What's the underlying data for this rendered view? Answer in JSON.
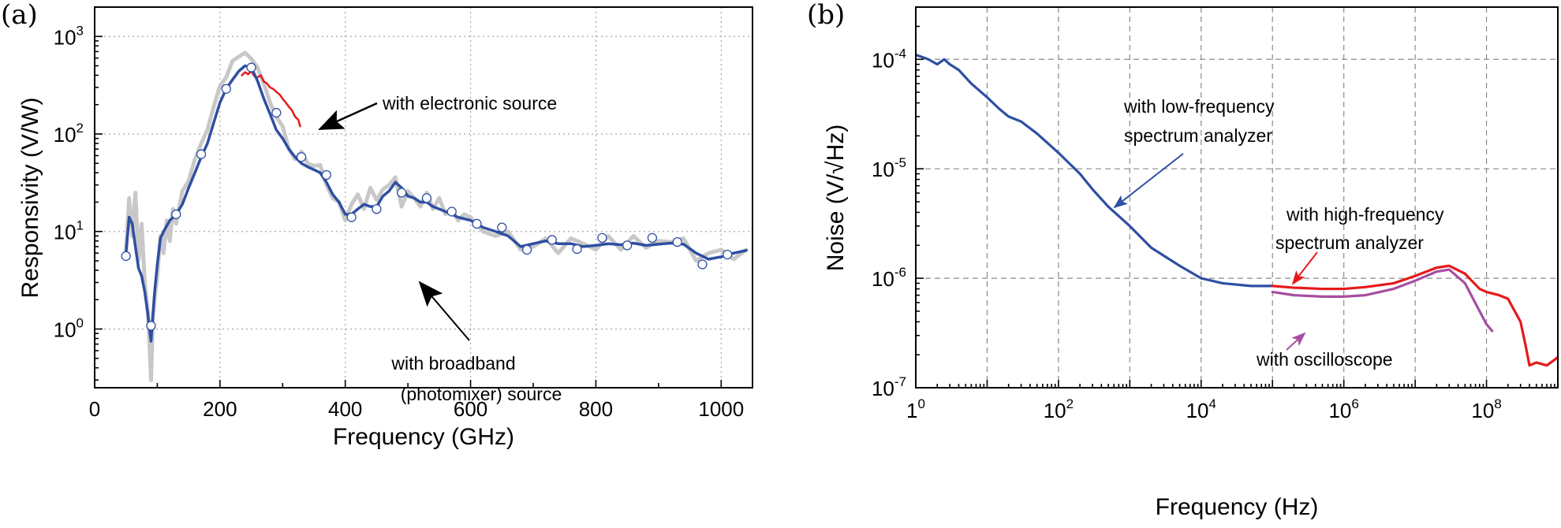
{
  "chart_data": [
    {
      "panel_label": "(a)",
      "type": "line",
      "xlabel": "Frequency (GHz)",
      "ylabel": "Responsivity (V/W)",
      "xlim": [
        0,
        1050
      ],
      "ylim": [
        0.25,
        2000
      ],
      "yscale": "log",
      "grid": true,
      "x_tick_labels": [
        "0",
        "200",
        "400",
        "600",
        "800",
        "1000"
      ],
      "y_tick_labels": [
        {
          "base": "10",
          "exp": "0",
          "value": 1
        },
        {
          "base": "10",
          "exp": "1",
          "value": 10
        },
        {
          "base": "10",
          "exp": "2",
          "value": 100
        },
        {
          "base": "10",
          "exp": "3",
          "value": 1000
        }
      ],
      "series": [
        {
          "color": "#c8c8c8",
          "role": "raw broadband data (gray)",
          "x": [
            50,
            55,
            60,
            65,
            70,
            75,
            80,
            85,
            88,
            90,
            93,
            96,
            100,
            105,
            110,
            115,
            120,
            125,
            130,
            140,
            150,
            160,
            170,
            180,
            190,
            200,
            210,
            220,
            230,
            240,
            250,
            260,
            270,
            280,
            290,
            300,
            310,
            320,
            330,
            340,
            350,
            360,
            370,
            380,
            390,
            400,
            410,
            420,
            430,
            440,
            450,
            460,
            470,
            480,
            490,
            500,
            510,
            520,
            530,
            540,
            550,
            560,
            570,
            580,
            590,
            600,
            620,
            640,
            660,
            680,
            700,
            720,
            740,
            760,
            780,
            800,
            820,
            840,
            860,
            880,
            900,
            920,
            940,
            960,
            980,
            1000,
            1020,
            1040
          ],
          "y": [
            6,
            22,
            9,
            25,
            5,
            12,
            3,
            1.5,
            0.6,
            0.3,
            1.3,
            2.2,
            3.5,
            9,
            6,
            13,
            8,
            17,
            12,
            26,
            33,
            55,
            80,
            110,
            190,
            310,
            380,
            560,
            620,
            680,
            590,
            480,
            330,
            210,
            150,
            120,
            70,
            55,
            66,
            50,
            47,
            48,
            30,
            22,
            20,
            13,
            19,
            24,
            17,
            28,
            21,
            27,
            30,
            36,
            18,
            26,
            22,
            18,
            25,
            17,
            22,
            15,
            17,
            13,
            15,
            14,
            10,
            9,
            10,
            6.5,
            7,
            8.5,
            6,
            8.5,
            7.5,
            6.5,
            9,
            6.5,
            9,
            6.8,
            8,
            7.8,
            8.5,
            5,
            6,
            6.5,
            5.2,
            6.5
          ]
        },
        {
          "color": "#e8191a",
          "name": "with electronic source",
          "x": [
            235,
            240,
            245,
            250,
            255,
            260,
            265,
            270,
            275,
            280,
            285,
            290,
            295,
            300,
            305,
            310,
            315,
            320,
            325,
            328
          ],
          "y": [
            400,
            430,
            410,
            440,
            390,
            380,
            400,
            345,
            330,
            300,
            290,
            270,
            255,
            230,
            210,
            190,
            175,
            150,
            140,
            120
          ]
        },
        {
          "color": "#2e4fa2",
          "name": "with broadband (photomixer) source",
          "x": [
            50,
            55,
            60,
            65,
            70,
            75,
            80,
            85,
            88,
            90,
            93,
            96,
            100,
            105,
            110,
            120,
            130,
            140,
            150,
            160,
            170,
            180,
            190,
            200,
            210,
            220,
            230,
            240,
            250,
            260,
            270,
            280,
            290,
            300,
            310,
            320,
            330,
            340,
            350,
            360,
            370,
            380,
            390,
            400,
            410,
            420,
            430,
            440,
            450,
            460,
            470,
            480,
            490,
            500,
            510,
            520,
            530,
            540,
            550,
            560,
            570,
            580,
            590,
            600,
            620,
            640,
            660,
            680,
            700,
            720,
            740,
            760,
            780,
            800,
            820,
            840,
            860,
            880,
            900,
            920,
            940,
            960,
            980,
            1000,
            1020,
            1040
          ],
          "y": [
            6,
            14,
            12,
            7,
            4.2,
            3.5,
            2.4,
            1.4,
            0.95,
            0.75,
            1.4,
            2.5,
            4.6,
            8.5,
            10,
            13,
            15,
            19,
            28,
            40,
            58,
            80,
            130,
            210,
            290,
            360,
            440,
            500,
            480,
            350,
            230,
            160,
            110,
            90,
            70,
            58,
            50,
            46,
            43,
            40,
            32,
            24,
            20,
            15,
            15,
            17,
            19,
            18,
            18,
            23,
            26,
            32,
            28,
            23,
            22,
            20,
            20,
            18,
            17,
            16,
            15,
            14,
            13.5,
            13,
            11,
            10,
            9,
            7,
            7.5,
            8,
            7.5,
            7.5,
            7,
            7.2,
            7.5,
            7.3,
            7.6,
            7.2,
            7.4,
            7.6,
            7.4,
            6,
            5.2,
            5.5,
            6,
            6.4
          ]
        }
      ],
      "markers": {
        "color": "#ffffff",
        "stroke": "#2e4fa2",
        "x": [
          50,
          90,
          130,
          170,
          210,
          250,
          290,
          330,
          370,
          410,
          450,
          490,
          530,
          570,
          610,
          650,
          690,
          730,
          770,
          810,
          850,
          890,
          930,
          970,
          1010
        ],
        "y": [
          5.6,
          1.08,
          15,
          62,
          290,
          480,
          165,
          58,
          38,
          14,
          17,
          25,
          22,
          16,
          12,
          11,
          6.5,
          8.2,
          6.6,
          8.6,
          7.2,
          8.6,
          7.8,
          4.6,
          5.8
        ]
      },
      "annotations": [
        {
          "text": "with electronic source"
        },
        {
          "lines": [
            "with broadband",
            "(photomixer) source"
          ]
        }
      ]
    },
    {
      "panel_label": "(b)",
      "type": "line",
      "xlabel": "Frequency (Hz)",
      "ylabel": "Noise (V/√Hz)",
      "xscale": "log",
      "yscale": "log",
      "xlim": [
        1,
        1000000000
      ],
      "ylim": [
        1e-07,
        0.0003
      ],
      "grid": true,
      "x_tick_labels": [
        {
          "base": "1",
          "exp": "0",
          "value": 1
        },
        {
          "base": "10",
          "exp": "2",
          "value": 100
        },
        {
          "base": "10",
          "exp": "4",
          "value": 10000
        },
        {
          "base": "10",
          "exp": "6",
          "value": 1000000
        },
        {
          "base": "10",
          "exp": "8",
          "value": 100000000
        }
      ],
      "y_tick_labels": [
        {
          "base": "10",
          "exp": "-7",
          "value": 1e-07
        },
        {
          "base": "10",
          "exp": "-6",
          "value": 1e-06
        },
        {
          "base": "10",
          "exp": "-5",
          "value": 1e-05
        },
        {
          "base": "10",
          "exp": "-4",
          "value": 0.0001
        }
      ],
      "series": [
        {
          "color": "#2e4fa2",
          "name": "with low-frequency spectrum analyzer",
          "x": [
            1,
            1.5,
            2,
            2.5,
            3,
            4,
            6,
            10,
            15,
            20,
            30,
            50,
            100,
            200,
            300,
            500,
            1000,
            2000,
            5000,
            10000,
            20000,
            50000,
            100000
          ],
          "y": [
            0.00011,
            0.0001,
            9e-05,
            0.0001,
            9e-05,
            8e-05,
            6e-05,
            4.5e-05,
            3.5e-05,
            3e-05,
            2.7e-05,
            2.1e-05,
            1.4e-05,
            9e-06,
            6.5e-06,
            4.5e-06,
            3e-06,
            1.9e-06,
            1.3e-06,
            1e-06,
            9e-07,
            8.5e-07,
            8.5e-07
          ]
        },
        {
          "color": "#e8191a",
          "name": "with high-frequency spectrum analyzer",
          "x": [
            100000,
            200000,
            500000,
            1000000,
            2000000,
            5000000,
            10000000,
            20000000,
            30000000,
            50000000,
            80000000,
            100000000,
            150000000,
            200000000,
            300000000,
            350000000,
            400000000,
            500000000,
            700000000,
            900000000,
            1000000000
          ],
          "y": [
            8.5e-07,
            8.2e-07,
            8e-07,
            8e-07,
            8.3e-07,
            9e-07,
            1.05e-06,
            1.25e-06,
            1.3e-06,
            1.1e-06,
            8e-07,
            7.5e-07,
            7e-07,
            6.5e-07,
            4e-07,
            2.5e-07,
            1.6e-07,
            1.7e-07,
            1.6e-07,
            1.8e-07,
            1.9e-07
          ]
        },
        {
          "color": "#a64ea0",
          "name": "with oscilloscope",
          "x": [
            100000,
            200000,
            500000,
            1000000,
            2000000,
            5000000,
            10000000,
            20000000,
            30000000,
            50000000,
            80000000,
            100000000,
            120000000
          ],
          "y": [
            7.5e-07,
            7e-07,
            6.8e-07,
            6.8e-07,
            7e-07,
            8e-07,
            9.5e-07,
            1.15e-06,
            1.2e-06,
            9e-07,
            5e-07,
            3.8e-07,
            3.3e-07
          ]
        }
      ],
      "annotations": [
        {
          "lines": [
            "with low-frequency",
            "spectrum analyzer"
          ]
        },
        {
          "lines": [
            "with high-frequency",
            "spectrum analyzer"
          ]
        },
        {
          "text": "with oscilloscope"
        }
      ]
    }
  ]
}
